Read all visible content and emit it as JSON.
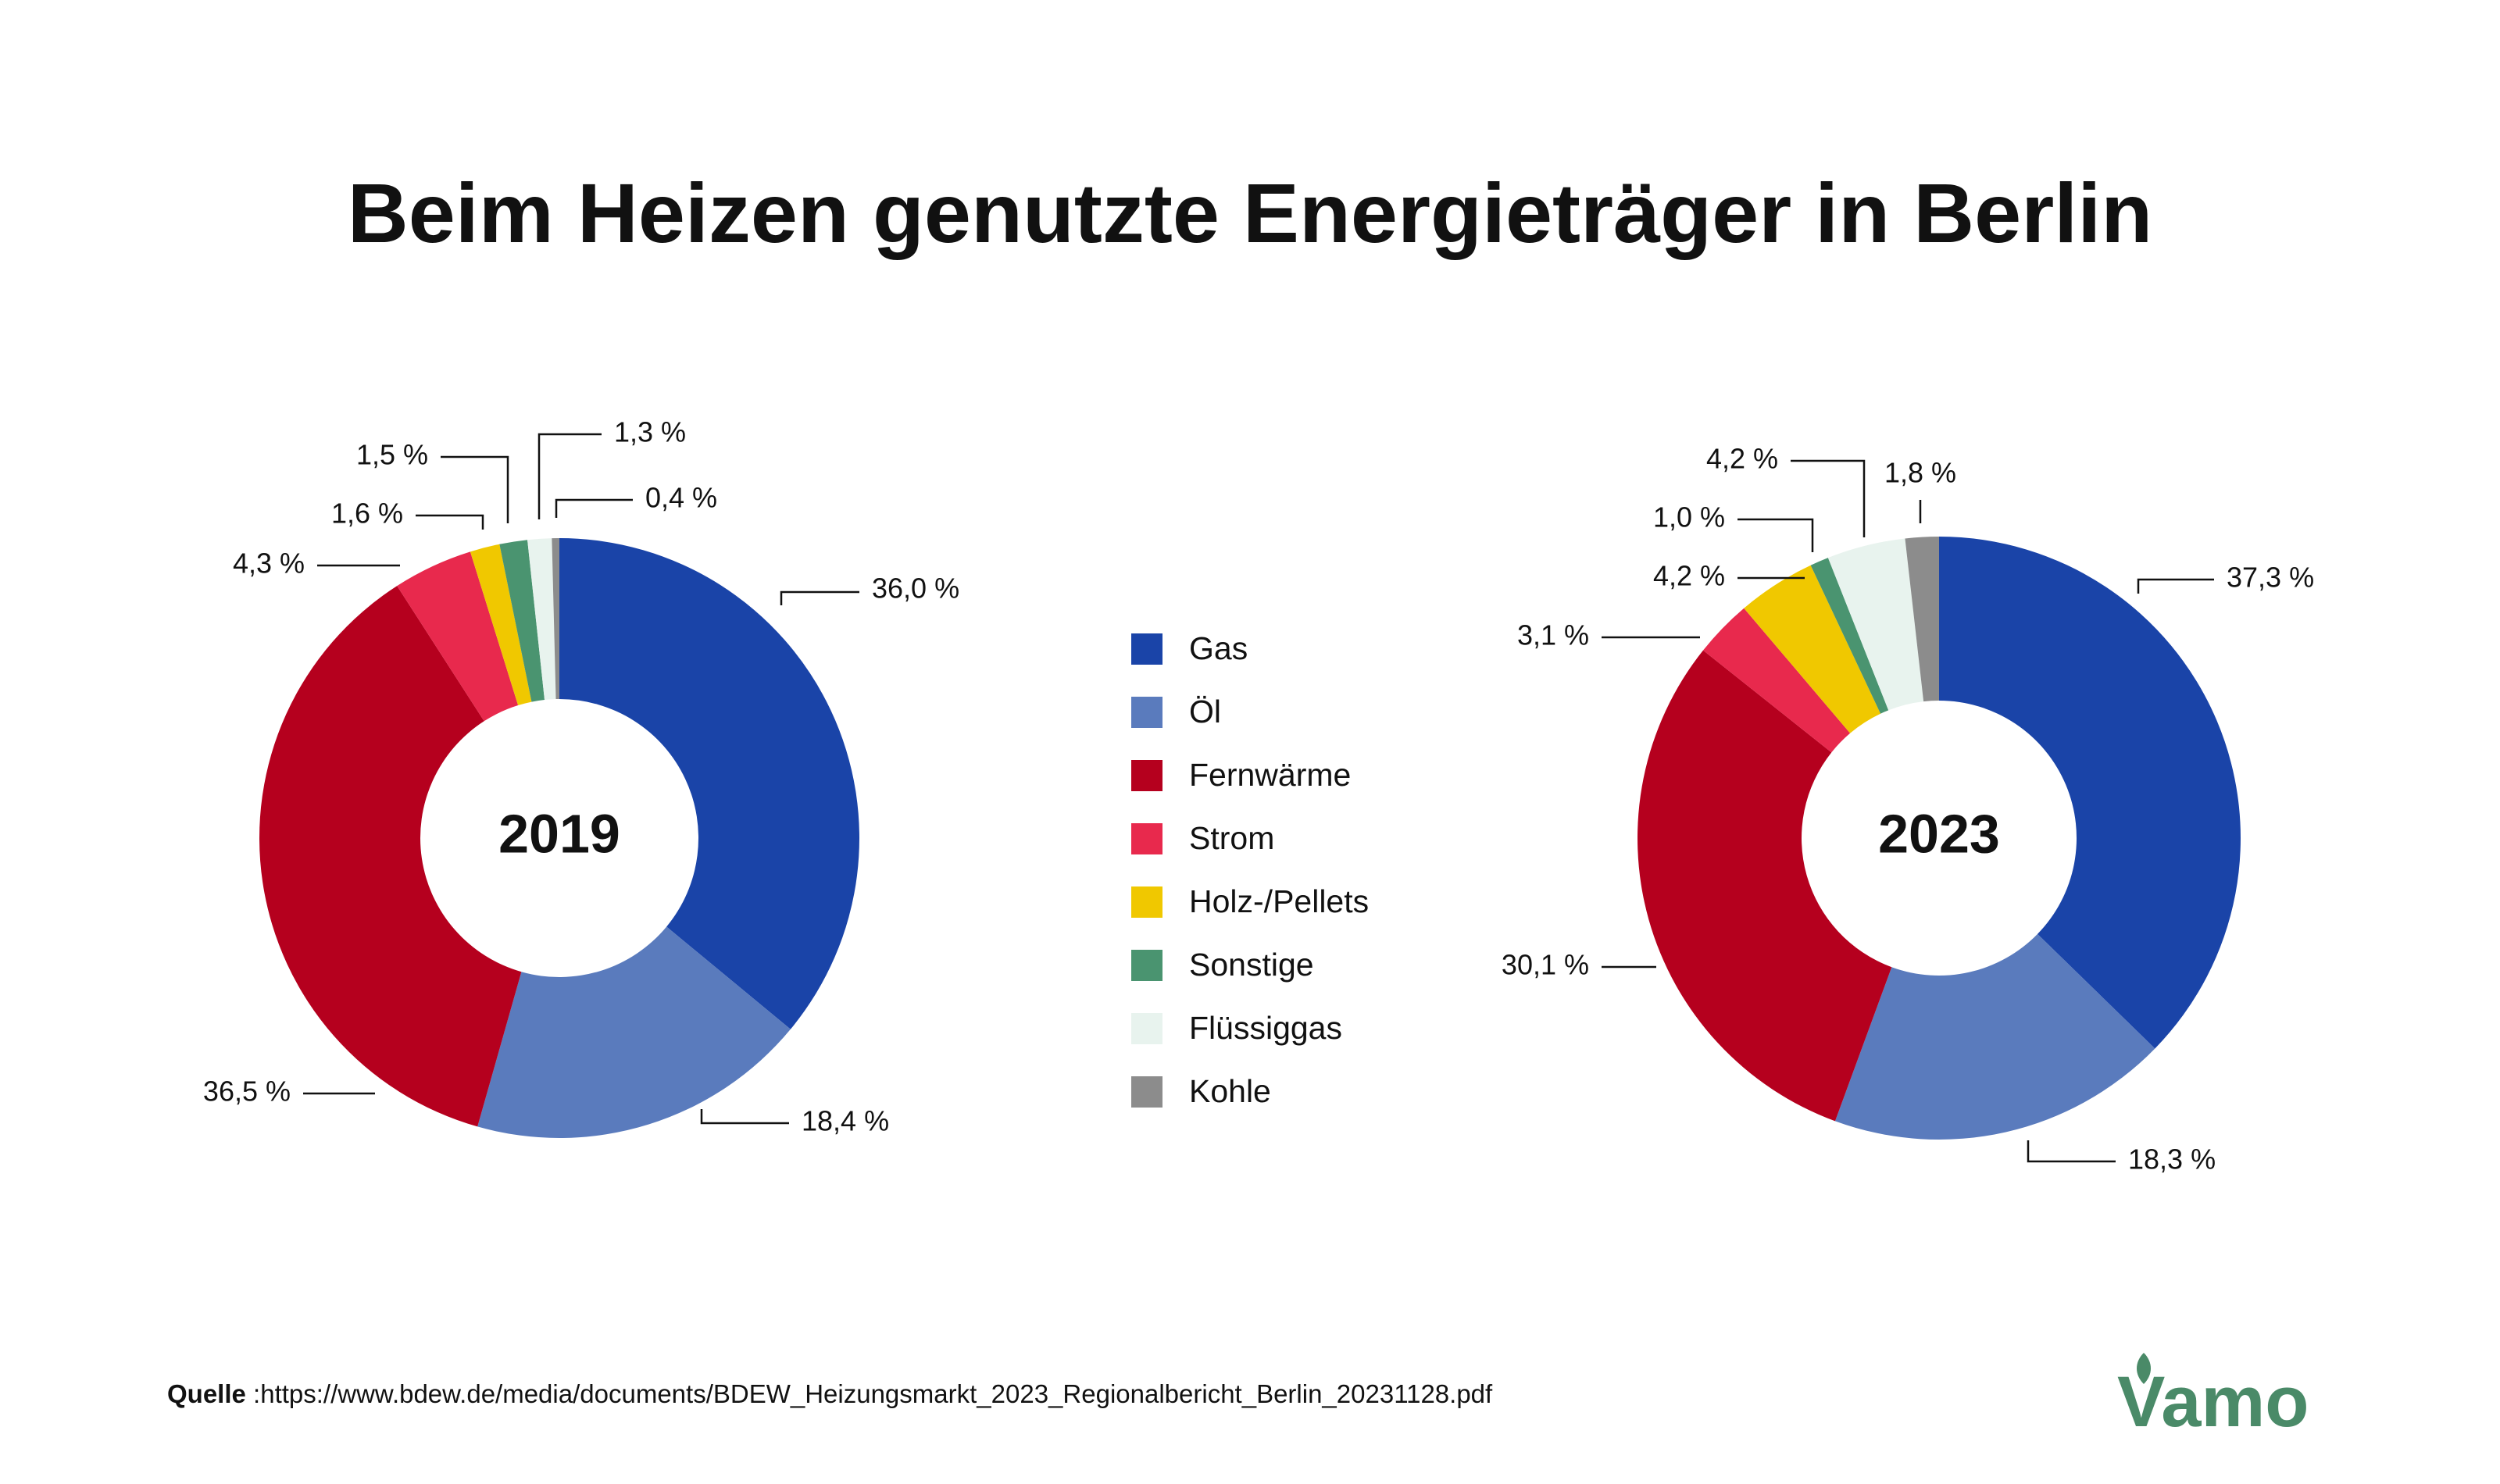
{
  "title": "Beim Heizen genutzte Energieträger in Berlin",
  "legend": [
    {
      "label": "Gas",
      "color": "#1a44a8"
    },
    {
      "label": "Öl",
      "color": "#5a7bbd"
    },
    {
      "label": "Fernwärme",
      "color": "#b5001e"
    },
    {
      "label": "Strom",
      "color": "#e8294d"
    },
    {
      "label": "Holz-/Pellets",
      "color": "#f0c800"
    },
    {
      "label": "Sonstige",
      "color": "#4a9470"
    },
    {
      "label": "Flüssiggas",
      "color": "#e8f3ee"
    },
    {
      "label": "Kohle",
      "color": "#8c8c8c"
    }
  ],
  "chart_data": [
    {
      "type": "pie",
      "center_label": "2019",
      "categories": [
        "Gas",
        "Öl",
        "Fernwärme",
        "Strom",
        "Holz-/Pellets",
        "Sonstige",
        "Flüssiggas",
        "Kohle"
      ],
      "values": [
        36.0,
        18.4,
        36.5,
        4.3,
        1.6,
        1.5,
        1.3,
        0.4
      ],
      "value_labels": [
        "36,0 %",
        "18,4 %",
        "36,5 %",
        "4,3 %",
        "1,6 %",
        "1,5 %",
        "1,3 %",
        "0,4 %"
      ]
    },
    {
      "type": "pie",
      "center_label": "2023",
      "categories": [
        "Gas",
        "Öl",
        "Fernwärme",
        "Strom",
        "Holz-/Pellets",
        "Sonstige",
        "Flüssiggas",
        "Kohle"
      ],
      "values": [
        37.3,
        18.3,
        30.1,
        3.1,
        4.2,
        1.0,
        4.2,
        1.8
      ],
      "value_labels": [
        "37,3 %",
        "18,3 %",
        "30,1 %",
        "3,1 %",
        "4,2 %",
        "1,0 %",
        "4,2 %",
        "1,8 %"
      ]
    }
  ],
  "source": {
    "label": "Quelle",
    "text": ":https://www.bdew.de/media/documents/BDEW_Heizungsmarkt_2023_Regionalbericht_Berlin_20231128.pdf"
  },
  "logo": {
    "text": "Vamo",
    "color": "#4a8a68"
  }
}
